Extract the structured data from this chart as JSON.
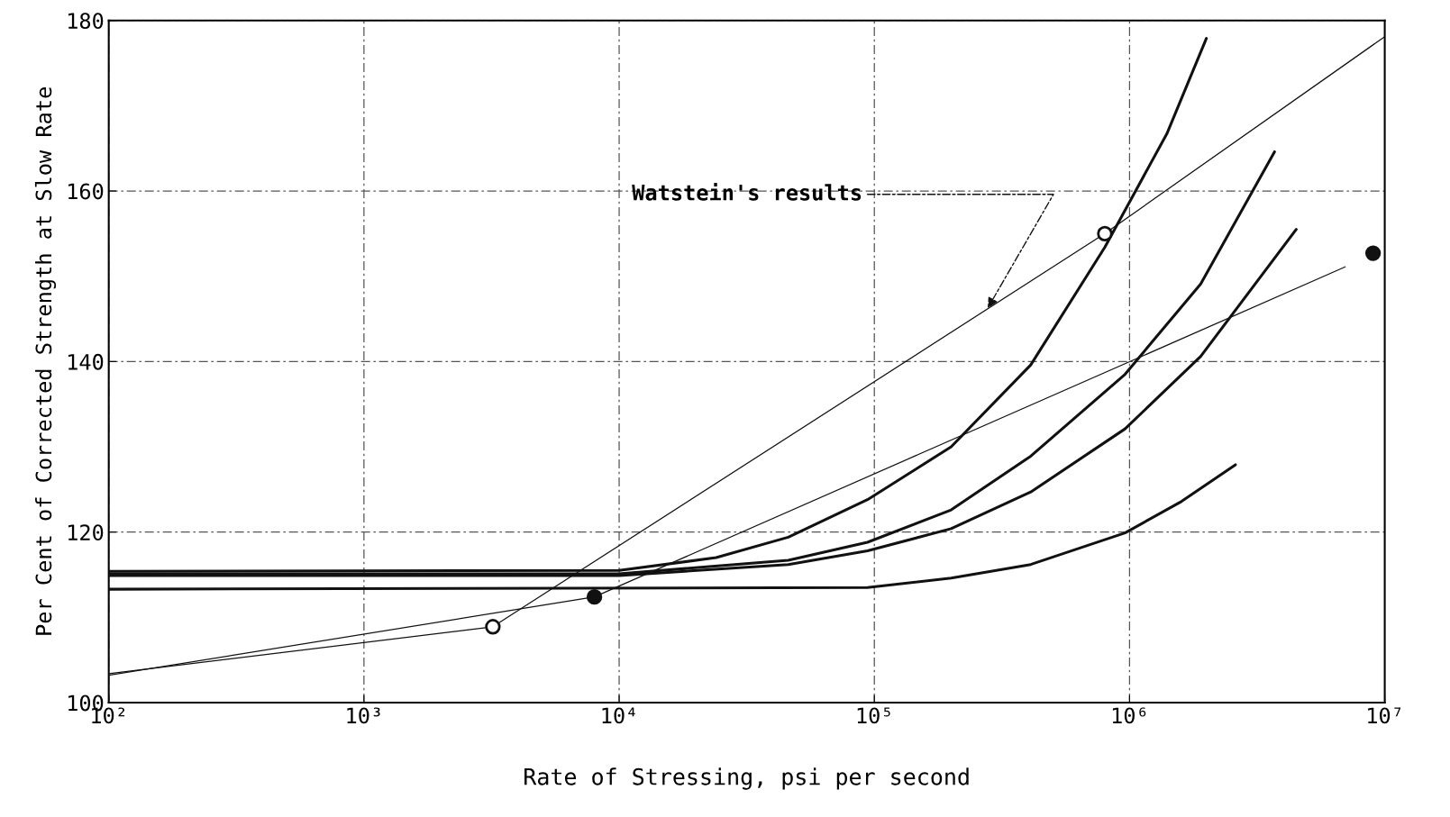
{
  "chart_data": {
    "type": "line",
    "xlabel": "Rate of Stressing, psi per second",
    "ylabel": "Per Cent of Corrected Strength at Slow Rate",
    "log": "x",
    "xlim": [
      100,
      10000000
    ],
    "ylim": [
      100,
      180
    ],
    "xticks": [
      {
        "value": 100,
        "label": "10²"
      },
      {
        "value": 1000,
        "label": "10³"
      },
      {
        "value": 10000,
        "label": "10⁴"
      },
      {
        "value": 100000,
        "label": "10⁵"
      },
      {
        "value": 1000000,
        "label": "10⁶"
      },
      {
        "value": 10000000,
        "label": "10⁷"
      }
    ],
    "yticks": [
      100,
      120,
      140,
      160,
      180
    ],
    "grid": true,
    "annotations": [
      {
        "text": "Watstein's results",
        "x": 275000,
        "y": 146
      }
    ],
    "series": [
      {
        "color": "#111111",
        "x": [
          100,
          3200,
          800000,
          10000000
        ],
        "values": [
          103.4,
          108.9,
          155.0,
          178.1
        ]
      },
      {
        "color": "#111111",
        "x": [
          100,
          8000,
          7000000
        ],
        "values": [
          103.2,
          112.4,
          151.1
        ]
      },
      {
        "color": "#111111",
        "x": [
          100,
          10000,
          24000,
          46000,
          94000,
          200000,
          410000,
          800000,
          1400000,
          2000000
        ],
        "values": [
          115.4,
          115.5,
          117.0,
          119.4,
          123.8,
          130.0,
          139.6,
          153.4,
          166.7,
          177.9
        ]
      },
      {
        "color": "#111111",
        "x": [
          100,
          10000,
          46000,
          94000,
          200000,
          410000,
          960000,
          1900000,
          3700000
        ],
        "values": [
          115.1,
          115.1,
          116.7,
          118.8,
          122.6,
          128.9,
          138.5,
          149.1,
          164.6
        ]
      },
      {
        "color": "#111111",
        "x": [
          100,
          10000,
          46000,
          94000,
          200000,
          410000,
          960000,
          1900000,
          4500000
        ],
        "values": [
          114.9,
          114.9,
          116.2,
          117.8,
          120.4,
          124.7,
          132.1,
          140.6,
          155.5
        ]
      },
      {
        "color": "#111111",
        "x": [
          100,
          94000,
          200000,
          410000,
          960000,
          1600000,
          2600000
        ],
        "values": [
          113.3,
          113.5,
          114.6,
          116.2,
          119.9,
          123.6,
          127.9
        ]
      },
      {
        "type": "scatter",
        "color": "#111111",
        "marker": "circle",
        "x": [
          3200,
          800000
        ],
        "values": [
          108.9,
          155.0
        ]
      },
      {
        "type": "scatter",
        "color": "#111111",
        "marker": "circle",
        "x": [
          8000,
          9000000
        ],
        "values": [
          112.4,
          152.7
        ]
      }
    ]
  }
}
